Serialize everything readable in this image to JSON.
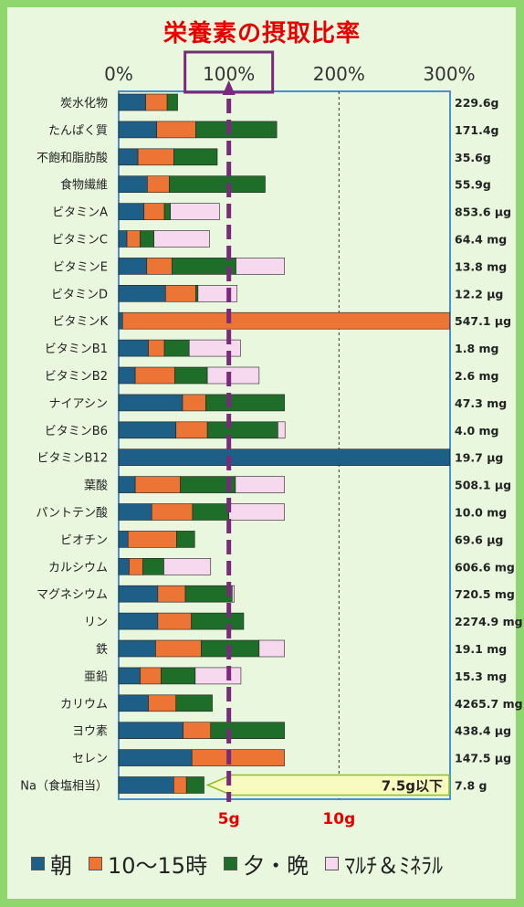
{
  "chart_data": {
    "type": "bar",
    "orientation": "horizontal",
    "stacked": true,
    "title": "栄養素の摂取比率",
    "x_ticks": [
      "0%",
      "100%",
      "200%",
      "300%"
    ],
    "xlim": [
      0,
      300
    ],
    "bottom_ticks": [
      "5g",
      "10g"
    ],
    "legend": [
      "朝",
      "10～15時",
      "夕・晩",
      "ﾏﾙﾁ＆ﾐﾈﾗﾙ"
    ],
    "series_names": [
      "朝",
      "10～15時",
      "夕・晩",
      "ﾏﾙﾁ＆ﾐﾈﾗﾙ"
    ],
    "colors": {
      "breakfast": "#1d5f86",
      "snack": "#ec7434",
      "dinner": "#1e6e2a",
      "multi": "#f6d8ef",
      "marker": "#7a2a7a",
      "frame": "#4a90d0",
      "title": "#e60000"
    },
    "rows": [
      {
        "label": "炭水化物",
        "total": "229.6g",
        "values": [
          24.5,
          19.5,
          9.5,
          0
        ]
      },
      {
        "label": "たんぱく質",
        "total": "171.4g",
        "values": [
          34.5,
          35.5,
          73.5,
          0
        ]
      },
      {
        "label": "不飽和脂肪酸",
        "total": "35.6g",
        "values": [
          17.5,
          32.5,
          39.5,
          0
        ]
      },
      {
        "label": "食物繊維",
        "total": "55.9g",
        "values": [
          26,
          20,
          87,
          0
        ]
      },
      {
        "label": "ビタミンA",
        "total": "853.6 μg",
        "values": [
          23,
          18.5,
          5.5,
          44.5
        ]
      },
      {
        "label": "ビタミンC",
        "total": "64.4 mg",
        "values": [
          7.5,
          12,
          12.5,
          50.5
        ]
      },
      {
        "label": "ビタミンE",
        "total": "13.8 mg",
        "values": [
          25.5,
          23,
          58,
          44
        ]
      },
      {
        "label": "ビタミンD",
        "total": "12.2 μg",
        "values": [
          42.5,
          27.5,
          2,
          35.5
        ]
      },
      {
        "label": "ビタミンK",
        "total": "547.1 μg",
        "values": [
          3.5,
          297,
          0,
          0
        ]
      },
      {
        "label": "ビタミンB1",
        "total": "1.8 mg",
        "values": [
          27,
          14.5,
          22.5,
          46.5
        ]
      },
      {
        "label": "ビタミンB2",
        "total": "2.6 mg",
        "values": [
          15,
          36,
          29.5,
          47
        ]
      },
      {
        "label": "ナイアシン",
        "total": "47.3 mg",
        "values": [
          58,
          21,
          71.5,
          0
        ]
      },
      {
        "label": "ビタミンB6",
        "total": "4.0 mg",
        "values": [
          52,
          28.5,
          64,
          6.5
        ]
      },
      {
        "label": "ビタミンB12",
        "total": "19.7 μg",
        "values": [
          300.5,
          0,
          0,
          0
        ]
      },
      {
        "label": "葉酸",
        "total": "508.1 μg",
        "values": [
          15,
          41,
          50,
          44.5
        ]
      },
      {
        "label": "パントテン酸",
        "total": "10.0 mg",
        "values": [
          30,
          37,
          33,
          50.5
        ]
      },
      {
        "label": "ビオチン",
        "total": "69.6 μg",
        "values": [
          8.5,
          44,
          16.5,
          0
        ]
      },
      {
        "label": "カルシウム",
        "total": "606.6 mg",
        "values": [
          9.5,
          12.5,
          19,
          42.5
        ]
      },
      {
        "label": "マグネシウム",
        "total": "720.5 mg",
        "values": [
          35.5,
          25,
          42.5,
          2
        ]
      },
      {
        "label": "リン",
        "total": "2274.9 mg",
        "values": [
          35.5,
          30.5,
          47.5,
          0
        ]
      },
      {
        "label": "鉄",
        "total": "19.1 mg",
        "values": [
          33.5,
          41.5,
          52.5,
          23
        ]
      },
      {
        "label": "亜鉛",
        "total": "15.3 mg",
        "values": [
          19.5,
          19,
          31,
          41.5
        ]
      },
      {
        "label": "カリウム",
        "total": "4265.7 mg",
        "values": [
          27,
          25,
          33,
          0
        ]
      },
      {
        "label": "ヨウ素",
        "total": "438.4 μg",
        "values": [
          58.5,
          25,
          67,
          0
        ]
      },
      {
        "label": "セレン",
        "total": "147.5 μg",
        "values": [
          66.5,
          84,
          0,
          0
        ]
      },
      {
        "label": "Na（食塩相当）",
        "total": "7.8 g",
        "values": [
          50,
          11.5,
          16,
          0
        ],
        "note": "7.5g以下"
      }
    ]
  }
}
